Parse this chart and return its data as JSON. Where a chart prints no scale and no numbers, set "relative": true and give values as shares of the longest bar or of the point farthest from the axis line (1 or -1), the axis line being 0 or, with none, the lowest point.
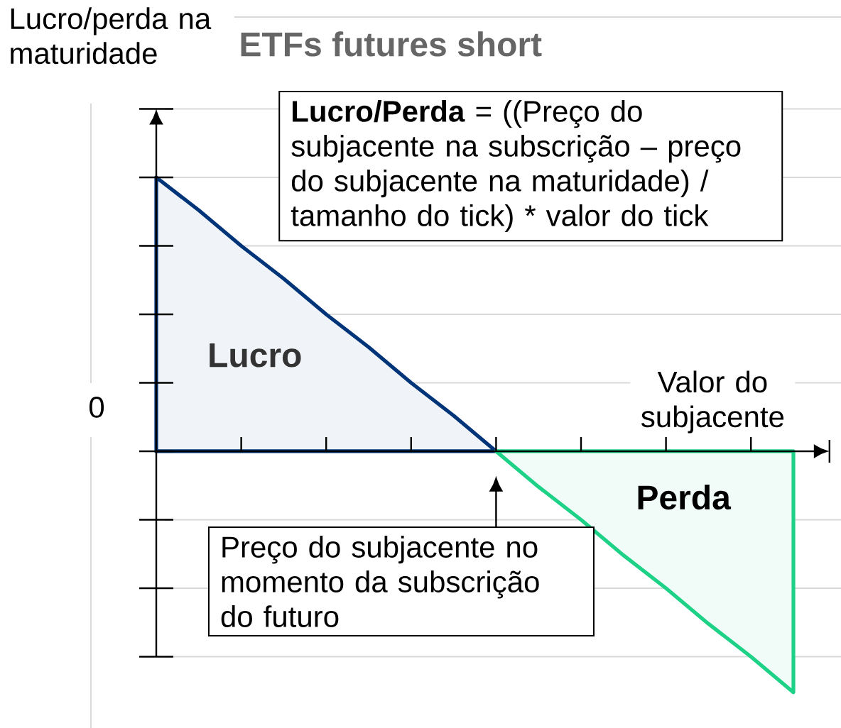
{
  "chart_data": {
    "type": "area",
    "title": "ETFs futures short",
    "ylabel": "Lucro/perda na maturidade",
    "xlabel": "Valor do subjacente",
    "relative": true,
    "grid": "y",
    "categories": [
      null,
      null,
      null,
      null,
      null,
      null,
      null,
      null,
      null,
      null,
      null,
      null,
      null,
      null,
      null,
      null
    ],
    "series": [
      {
        "name": "Lucro",
        "color": "#003478",
        "values": [
          1,
          0.88,
          0.75,
          0.63,
          0.5,
          0.38,
          0.25,
          0.13,
          0,
          null,
          null,
          null,
          null,
          null,
          null,
          null
        ]
      },
      {
        "name": "Perda",
        "color": "#1dd186",
        "values": [
          null,
          null,
          null,
          null,
          null,
          null,
          null,
          null,
          0,
          -0.13,
          -0.25,
          -0.38,
          -0.5,
          -0.63,
          -0.75,
          -0.88
        ]
      }
    ],
    "annotations": [
      "**Lucro/Perda** = ((Preço do subjacente na subscrição – preço do subjacente na maturidade) / tamanho do tick) * valor do tick",
      "Preço do subjacente no momento da subscrição do futuro",
      "0"
    ]
  }
}
